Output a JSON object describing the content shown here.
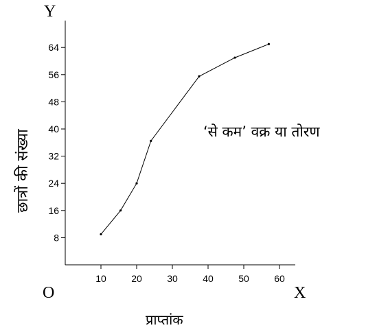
{
  "chart_data": {
    "type": "line",
    "title": "",
    "annotation": "‘से कम’ वक्र या तोरण",
    "xlabel": "प्राप्तांक",
    "ylabel": "छात्रों की संख्या",
    "x_axis_letter": "X",
    "y_axis_letter": "Y",
    "origin_label": "O",
    "x_ticks": [
      "10",
      "20",
      "30",
      "40",
      "50",
      "60"
    ],
    "y_ticks": [
      "8",
      "16",
      "24",
      "32",
      "40",
      "48",
      "56",
      "64"
    ],
    "x_tick_values": [
      10,
      20,
      30,
      40,
      50,
      60
    ],
    "y_tick_values": [
      8,
      16,
      24,
      32,
      40,
      48,
      56,
      64
    ],
    "xlim": [
      0,
      66
    ],
    "ylim": [
      0,
      70
    ],
    "grid": false,
    "legend": "none",
    "series": [
      {
        "x": [
          10,
          15.5,
          20,
          24,
          37.5,
          47.5,
          57
        ],
        "y": [
          9,
          16,
          24,
          36.5,
          55.5,
          61,
          65
        ]
      }
    ]
  }
}
